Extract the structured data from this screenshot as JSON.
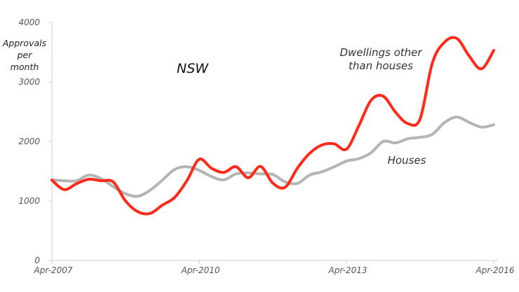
{
  "chart_data": {
    "type": "line",
    "title": "NSW",
    "xlabel": "",
    "ylabel": "Approvals per month",
    "ylabel_lines": [
      "Approvals",
      "per",
      "month"
    ],
    "ylim": [
      0,
      4000
    ],
    "yticks": [
      0,
      1000,
      2000,
      3000,
      4000
    ],
    "xticks": [
      "Apr-2007",
      "Apr-2010",
      "Apr-2013",
      "Apr-2016"
    ],
    "grid": false,
    "x": [
      "Apr-2007",
      "Jul-2007",
      "Oct-2007",
      "Jan-2008",
      "Apr-2008",
      "Jul-2008",
      "Oct-2008",
      "Jan-2009",
      "Apr-2009",
      "Jul-2009",
      "Oct-2009",
      "Jan-2010",
      "Apr-2010",
      "Jul-2010",
      "Oct-2010",
      "Jan-2011",
      "Apr-2011",
      "Jul-2011",
      "Oct-2011",
      "Jan-2012",
      "Apr-2012",
      "Jul-2012",
      "Oct-2012",
      "Jan-2013",
      "Apr-2013",
      "Jul-2013",
      "Oct-2013",
      "Jan-2014",
      "Apr-2014",
      "Jul-2014",
      "Oct-2014",
      "Jan-2015",
      "Apr-2015",
      "Jul-2015",
      "Oct-2015",
      "Jan-2016",
      "Apr-2016"
    ],
    "series": [
      {
        "name": "Dwellings other than houses",
        "label_lines": [
          "Dwellings other",
          "than houses"
        ],
        "color": "#ff2a1a",
        "values": [
          1350,
          1190,
          1290,
          1365,
          1340,
          1320,
          1000,
          820,
          790,
          930,
          1060,
          1340,
          1700,
          1550,
          1480,
          1575,
          1390,
          1580,
          1300,
          1230,
          1550,
          1800,
          1940,
          1960,
          1870,
          2260,
          2690,
          2760,
          2490,
          2300,
          2380,
          3320,
          3670,
          3730,
          3435,
          3220,
          3530
        ]
      },
      {
        "name": "Houses",
        "label_lines": [
          "Houses"
        ],
        "color": "#b4b4b4",
        "values": [
          1355,
          1340,
          1340,
          1435,
          1375,
          1240,
          1120,
          1080,
          1180,
          1350,
          1530,
          1575,
          1515,
          1410,
          1355,
          1455,
          1470,
          1455,
          1445,
          1320,
          1295,
          1435,
          1490,
          1575,
          1670,
          1710,
          1810,
          2000,
          1975,
          2045,
          2070,
          2120,
          2320,
          2410,
          2320,
          2240,
          2280
        ]
      }
    ]
  }
}
